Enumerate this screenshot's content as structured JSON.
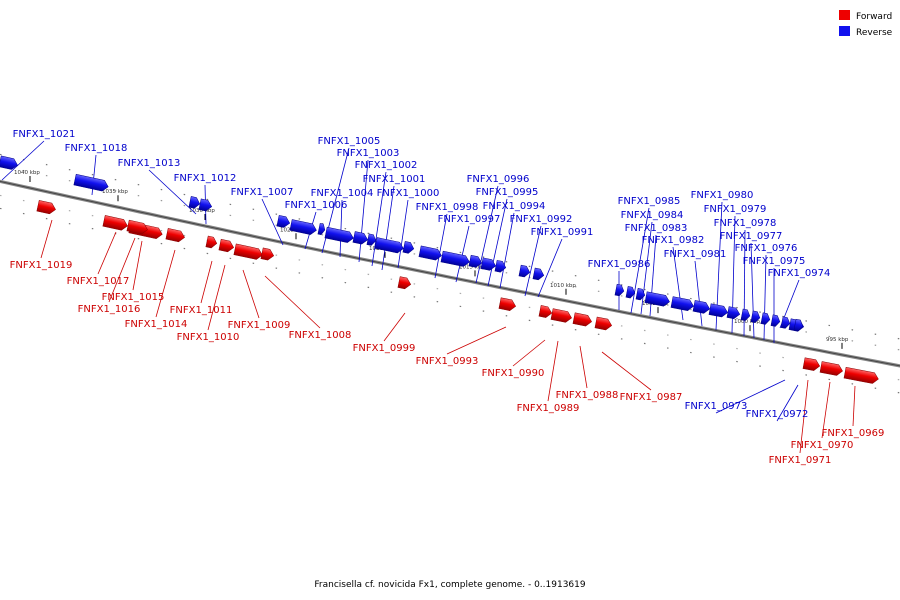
{
  "caption": "Francisella cf. novicida Fx1, complete genome. - 0..1913619",
  "legend": [
    {
      "label": "Forward",
      "color": "#ee0000"
    },
    {
      "label": "Reverse",
      "color": "#1111ee"
    }
  ],
  "colors": {
    "forward": "#ee0000",
    "reverse": "#1111ee",
    "forward_label": "#cc0000",
    "reverse_label": "#0000cc"
  },
  "ticks": [
    "1040 kbp",
    "1035 kbp",
    "1030 kbp",
    "1025 kbp",
    "1020 kbp",
    "1015 kbp",
    "1010 kbp",
    "1005 kbp",
    "1000 kbp",
    "995 kbp"
  ],
  "genes": [
    {
      "name": "FNFX1_1021",
      "strand": "reverse"
    },
    {
      "name": "FNFX1_1019",
      "strand": "forward"
    },
    {
      "name": "FNFX1_1018",
      "strand": "reverse"
    },
    {
      "name": "FNFX1_1017",
      "strand": "forward"
    },
    {
      "name": "FNFX1_1016",
      "strand": "forward"
    },
    {
      "name": "FNFX1_1015",
      "strand": "forward"
    },
    {
      "name": "FNFX1_1014",
      "strand": "forward"
    },
    {
      "name": "FNFX1_1013",
      "strand": "reverse"
    },
    {
      "name": "FNFX1_1012",
      "strand": "reverse"
    },
    {
      "name": "FNFX1_1011",
      "strand": "forward"
    },
    {
      "name": "FNFX1_1010",
      "strand": "forward"
    },
    {
      "name": "FNFX1_1009",
      "strand": "forward"
    },
    {
      "name": "FNFX1_1008",
      "strand": "forward"
    },
    {
      "name": "FNFX1_1007",
      "strand": "reverse"
    },
    {
      "name": "FNFX1_1006",
      "strand": "reverse"
    },
    {
      "name": "FNFX1_1005",
      "strand": "reverse"
    },
    {
      "name": "FNFX1_1004",
      "strand": "reverse"
    },
    {
      "name": "FNFX1_1003",
      "strand": "reverse"
    },
    {
      "name": "FNFX1_1002",
      "strand": "reverse"
    },
    {
      "name": "FNFX1_1001",
      "strand": "reverse"
    },
    {
      "name": "FNFX1_1000",
      "strand": "reverse"
    },
    {
      "name": "FNFX1_0999",
      "strand": "forward"
    },
    {
      "name": "FNFX1_0998",
      "strand": "reverse"
    },
    {
      "name": "FNFX1_0997",
      "strand": "reverse"
    },
    {
      "name": "FNFX1_0996",
      "strand": "reverse"
    },
    {
      "name": "FNFX1_0995",
      "strand": "reverse"
    },
    {
      "name": "FNFX1_0994",
      "strand": "reverse"
    },
    {
      "name": "FNFX1_0993",
      "strand": "forward"
    },
    {
      "name": "FNFX1_0992",
      "strand": "reverse"
    },
    {
      "name": "FNFX1_0991",
      "strand": "reverse"
    },
    {
      "name": "FNFX1_0990",
      "strand": "forward"
    },
    {
      "name": "FNFX1_0989",
      "strand": "forward"
    },
    {
      "name": "FNFX1_0988",
      "strand": "forward"
    },
    {
      "name": "FNFX1_0987",
      "strand": "forward"
    },
    {
      "name": "FNFX1_0986",
      "strand": "reverse"
    },
    {
      "name": "FNFX1_0985",
      "strand": "reverse"
    },
    {
      "name": "FNFX1_0984",
      "strand": "reverse"
    },
    {
      "name": "FNFX1_0983",
      "strand": "reverse"
    },
    {
      "name": "FNFX1_0982",
      "strand": "reverse"
    },
    {
      "name": "FNFX1_0981",
      "strand": "reverse"
    },
    {
      "name": "FNFX1_0980",
      "strand": "reverse"
    },
    {
      "name": "FNFX1_0979",
      "strand": "reverse"
    },
    {
      "name": "FNFX1_0978",
      "strand": "reverse"
    },
    {
      "name": "FNFX1_0977",
      "strand": "reverse"
    },
    {
      "name": "FNFX1_0976",
      "strand": "reverse"
    },
    {
      "name": "FNFX1_0975",
      "strand": "reverse"
    },
    {
      "name": "FNFX1_0974",
      "strand": "reverse"
    },
    {
      "name": "FNFX1_0973",
      "strand": "reverse"
    },
    {
      "name": "FNFX1_0972",
      "strand": "reverse"
    },
    {
      "name": "FNFX1_0971",
      "strand": "forward"
    },
    {
      "name": "FNFX1_0970",
      "strand": "forward"
    },
    {
      "name": "FNFX1_0969",
      "strand": "forward"
    }
  ]
}
